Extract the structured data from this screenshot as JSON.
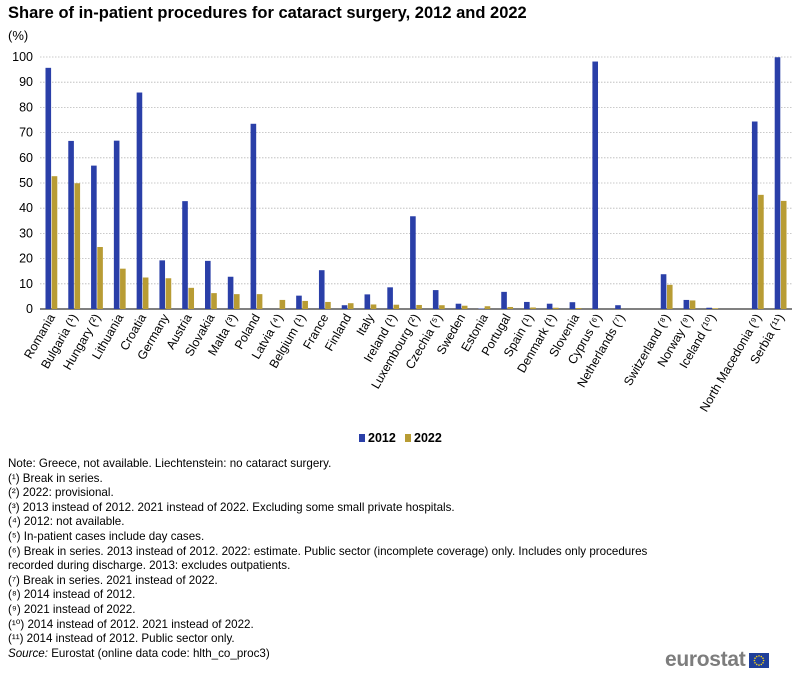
{
  "title": "Share of in-patient procedures for cataract surgery, 2012 and 2022",
  "unit": "(%)",
  "chart_data": {
    "type": "bar",
    "title": "Share of in-patient procedures for cataract surgery, 2012 and 2022",
    "ylabel": "(%)",
    "ylim": [
      0,
      100
    ],
    "yticks": [
      0,
      10,
      20,
      30,
      40,
      50,
      60,
      70,
      80,
      90,
      100
    ],
    "grid": true,
    "legend_position": "bottom-center",
    "categories": [
      "Romania",
      "Bulgaria (¹)",
      "Hungary (²)",
      "Lithuania",
      "Croatia",
      "Germany",
      "Austria",
      "Slovakia",
      "Malta (³)",
      "Poland",
      "Latvia (⁴)",
      "Belgium (¹)",
      "France",
      "Finland",
      "Italy",
      "Ireland (¹)",
      "Luxembourg (²)",
      "Czechia (⁵)",
      "Sweden",
      "Estonia",
      "Portugal",
      "Spain (¹)",
      "Denmark (¹)",
      "Slovenia",
      "Cyprus (⁶)",
      "Netherlands (⁷)",
      "",
      "Switzerland (⁸)",
      "Norway (⁹)",
      "Iceland (¹⁰)",
      "",
      "North Macedonia (⁹)",
      "Serbia (¹¹)"
    ],
    "series": [
      {
        "name": "2012",
        "color": "#2a3fa8",
        "values": [
          95.7,
          66.7,
          56.9,
          66.8,
          85.9,
          19.3,
          42.8,
          19.1,
          12.8,
          73.5,
          null,
          5.3,
          15.4,
          1.5,
          5.8,
          8.6,
          36.8,
          7.5,
          2.1,
          0.2,
          6.8,
          2.8,
          2.1,
          2.7,
          98.2,
          1.5,
          null,
          13.8,
          3.6,
          0.5,
          null,
          74.4,
          99.9
        ]
      },
      {
        "name": "2022",
        "color": "#b89c34",
        "values": [
          52.7,
          49.9,
          24.6,
          16.0,
          12.5,
          12.2,
          8.4,
          6.3,
          5.9,
          5.9,
          3.6,
          3.2,
          2.8,
          2.3,
          1.8,
          1.7,
          1.6,
          1.5,
          1.3,
          1.1,
          0.8,
          0.6,
          0.5,
          0.4,
          0.0,
          0.0,
          null,
          9.6,
          3.4,
          0.3,
          null,
          45.3,
          42.9
        ]
      }
    ]
  },
  "notes": [
    "Note: Greece, not available. Liechtenstein: no cataract surgery.",
    "(¹) Break in series.",
    "(²) 2022: provisional.",
    "(³) 2013 instead of 2012. 2021 instead of 2022. Excluding some small private hospitals.",
    "(⁴) 2012: not available.",
    "(⁵) In-patient  cases include day cases.",
    "(⁶) Break in series. 2013 instead of 2012. 2022: estimate. Public sector (incomplete coverage) only. Includes  only procedures recorded during discharge. 2013: excludes outpatients.",
    "(⁷) Break in series. 2021 instead of 2022.",
    "(⁸) 2014 instead of 2012.",
    "(⁹) 2021 instead of 2022.",
    "(¹⁰) 2014 instead of 2012. 2021 instead of 2022.",
    "(¹¹) 2014 instead of 2012. Public sector only."
  ],
  "source": {
    "label": "Source:",
    "text": " Eurostat (online data code: hlth_co_proc3)"
  },
  "logo": {
    "text": "eurostat"
  }
}
